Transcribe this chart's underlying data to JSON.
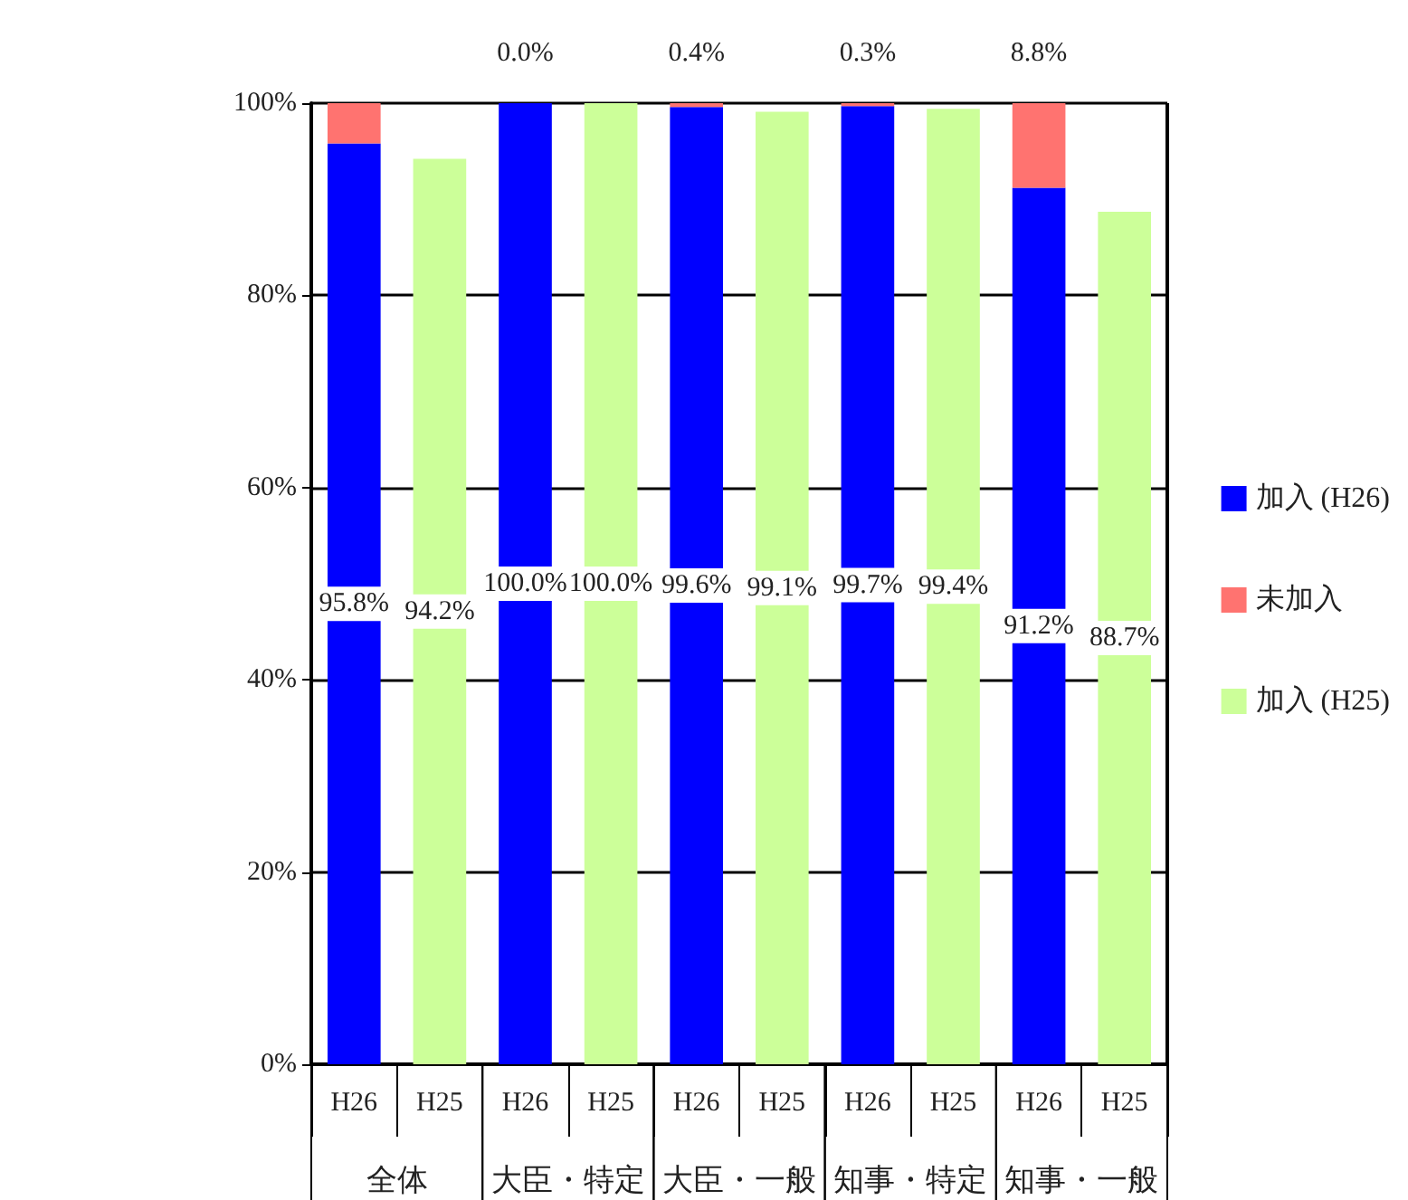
{
  "chart_data": {
    "type": "bar",
    "stacked": true,
    "categories": [
      "H26",
      "H25",
      "H26",
      "H25",
      "H26",
      "H25",
      "H26",
      "H25",
      "H26",
      "H25"
    ],
    "series": [
      {
        "name": "加入 (H26)",
        "color": "#0000ff",
        "values": [
          95.8,
          null,
          100.0,
          null,
          99.6,
          null,
          99.7,
          null,
          91.2,
          null
        ],
        "value_labels": [
          "95.8%",
          null,
          "100.0%",
          null,
          "99.6%",
          null,
          "99.7%",
          null,
          "91.2%",
          null
        ]
      },
      {
        "name": "未加入",
        "color": "#ff7370",
        "values": [
          4.2,
          null,
          0.0,
          null,
          0.4,
          null,
          0.3,
          null,
          8.8,
          null
        ],
        "value_labels": [
          null,
          null,
          "0.0%",
          null,
          "0.4%",
          null,
          "0.3%",
          null,
          "8.8%",
          null
        ]
      },
      {
        "name": "加入 (H25)",
        "color": "#ccff99",
        "values": [
          null,
          94.2,
          null,
          100.0,
          null,
          99.1,
          null,
          99.4,
          null,
          88.7
        ],
        "value_labels": [
          null,
          "94.2%",
          null,
          "100.0%",
          null,
          "99.1%",
          null,
          "99.4%",
          null,
          "88.7%"
        ]
      }
    ],
    "annotations": [
      "全体",
      "大臣・特定",
      "大臣・一般",
      "知事・特定",
      "知事・一般"
    ],
    "ylim": [
      0,
      100
    ],
    "yticks": [
      {
        "value": 0,
        "label": "0%"
      },
      {
        "value": 20,
        "label": "20%"
      },
      {
        "value": 40,
        "label": "40%"
      },
      {
        "value": 60,
        "label": "60%"
      },
      {
        "value": 80,
        "label": "80%"
      },
      {
        "value": 100,
        "label": "100%"
      }
    ],
    "grid": "y",
    "legend": "right"
  }
}
